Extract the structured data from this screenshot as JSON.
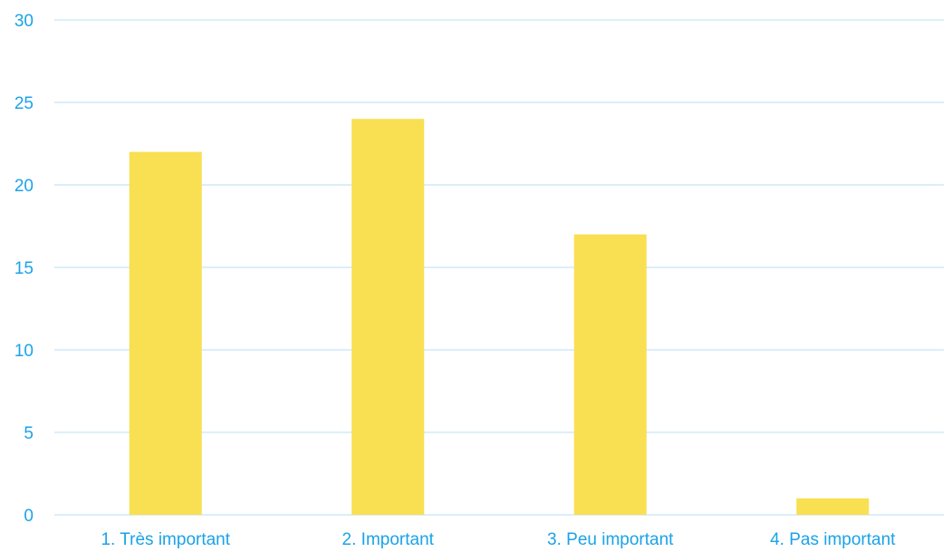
{
  "chart_data": {
    "type": "bar",
    "title": "",
    "xlabel": "",
    "ylabel": "",
    "categories": [
      "1. Très important",
      "2. Important",
      "3. Peu important",
      "4. Pas important"
    ],
    "values": [
      22,
      24,
      17,
      1
    ],
    "ylim": [
      0,
      30
    ],
    "yticks": [
      0,
      5,
      10,
      15,
      20,
      25,
      30
    ],
    "grid": true,
    "legend": "none",
    "colors": {
      "bar": "#F9DF52",
      "text": "#1AA3E8",
      "grid": "#CFEAF8"
    }
  }
}
